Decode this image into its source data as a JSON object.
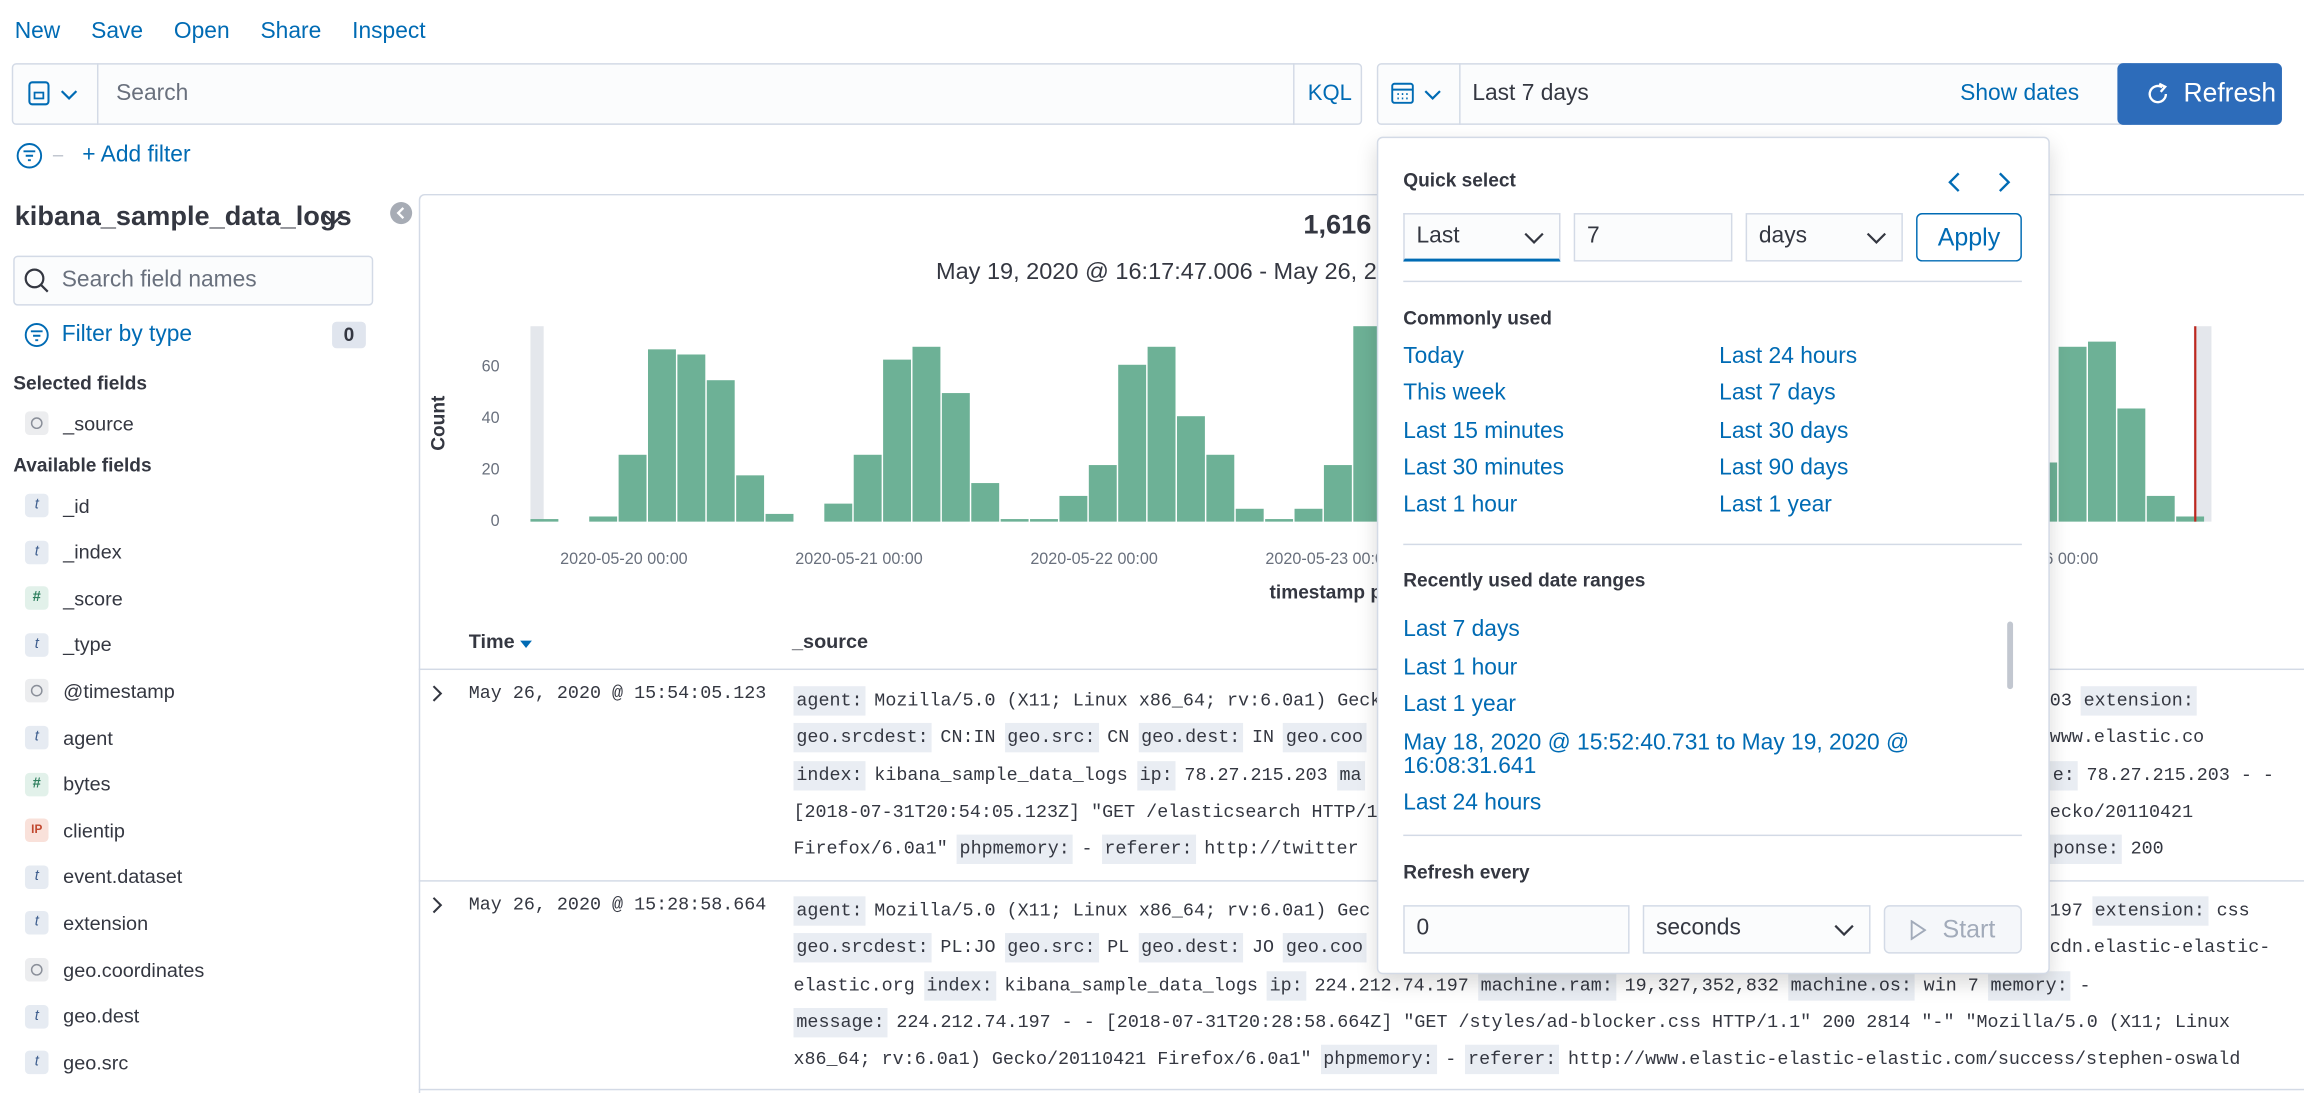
{
  "toolbar": {
    "links": [
      "New",
      "Save",
      "Open",
      "Share",
      "Inspect"
    ]
  },
  "query_bar": {
    "search_placeholder": "Search",
    "query_language": "KQL",
    "date_range": "Last 7 days",
    "show_dates": "Show dates",
    "refresh_button": "Refresh"
  },
  "filter_bar": {
    "add_filter": "+ Add filter"
  },
  "sidebar": {
    "index_pattern": "kibana_sample_data_logs",
    "search_placeholder": "Search field names",
    "filter_by_type": "Filter by type",
    "filter_count": 0,
    "selected_heading": "Selected fields",
    "selected_fields": [
      {
        "icon": null,
        "name": "_source"
      }
    ],
    "available_heading": "Available fields",
    "available_fields": [
      {
        "icon": "t",
        "name": "_id"
      },
      {
        "icon": "t",
        "name": "_index"
      },
      {
        "icon": "#",
        "name": "_score"
      },
      {
        "icon": "t",
        "name": "_type"
      },
      {
        "icon": null,
        "name": "@timestamp"
      },
      {
        "icon": "t",
        "name": "agent"
      },
      {
        "icon": "#",
        "name": "bytes"
      },
      {
        "icon": "IP",
        "name": "clientip"
      },
      {
        "icon": "t",
        "name": "event.dataset"
      },
      {
        "icon": "t",
        "name": "extension"
      },
      {
        "icon": null,
        "name": "geo.coordinates"
      },
      {
        "icon": "t",
        "name": "geo.dest"
      },
      {
        "icon": "t",
        "name": "geo.src"
      }
    ]
  },
  "results": {
    "hits": "1,616",
    "time_range": "May 19, 2020 @ 16:17:47.006 - May 26, 20",
    "histogram": {
      "type": "bar",
      "y_label": "Count",
      "x_label": "timestamp p",
      "color": "#6db196",
      "ylim": [
        0,
        76
      ],
      "yticks": [
        0,
        20,
        40,
        60
      ],
      "xticks": [
        "2020-05-20 00:00",
        "2020-05-21 00:00",
        "2020-05-22 00:00",
        "2020-05-23 00:00",
        null,
        null,
        "6 00:00"
      ],
      "counts": [
        1,
        0,
        2,
        26,
        67,
        65,
        55,
        18,
        3,
        0,
        7,
        26,
        63,
        68,
        50,
        15,
        1,
        1,
        10,
        22,
        61,
        68,
        41,
        26,
        5,
        1,
        5,
        22,
        76,
        null,
        null,
        null,
        null,
        null,
        null,
        null,
        null,
        null,
        null,
        null,
        null,
        null,
        null,
        null,
        null,
        null,
        null,
        null,
        null,
        null,
        null,
        23,
        68,
        70,
        44,
        10,
        2
      ]
    },
    "table": {
      "columns": [
        "Time",
        "_source"
      ],
      "rows": [
        {
          "time": "May 26, 2020 @ 15:54:05.123",
          "lines": [
            {
              "left": [
                {
                  "k": "agent:"
                },
                {
                  "t": "Mozilla/5.0 (X11; Linux x86_64; rv:6.0a1) Geck"
                }
              ],
              "right": [
                {
                  "t": "03"
                },
                {
                  "k": "extension:"
                }
              ]
            },
            {
              "left": [
                {
                  "k": "geo.srcdest:"
                },
                {
                  "t": "CN:IN"
                },
                {
                  "k": "geo.src:"
                },
                {
                  "t": "CN"
                },
                {
                  "k": "geo.dest:"
                },
                {
                  "t": "IN"
                },
                {
                  "k": "geo.coo"
                }
              ],
              "right": [
                {
                  "t": "www.elastic.co"
                }
              ]
            },
            {
              "left": [
                {
                  "k": "index:"
                },
                {
                  "t": "kibana_sample_data_logs"
                },
                {
                  "k": "ip:"
                },
                {
                  "t": "78.27.215.203"
                },
                {
                  "k": "ma"
                }
              ],
              "right": [
                {
                  "k": "e:"
                },
                {
                  "t": "78.27.215.203 - -"
                }
              ]
            },
            {
              "left": [
                {
                  "t": "[2018-07-31T20:54:05.123Z] \"GET /elasticsearch HTTP/1"
                }
              ],
              "right": [
                {
                  "t": "ecko/20110421"
                }
              ]
            },
            {
              "left": [
                {
                  "t": "Firefox/6.0a1\""
                },
                {
                  "k": "phpmemory:"
                },
                {
                  "t": "-"
                },
                {
                  "k": "referer:"
                },
                {
                  "t": "http://twitter"
                }
              ],
              "right": [
                {
                  "k": "ponse:"
                },
                {
                  "t": "200"
                }
              ]
            }
          ]
        },
        {
          "time": "May 26, 2020 @ 15:28:58.664",
          "lines": [
            {
              "left": [
                {
                  "k": "agent:"
                },
                {
                  "t": "Mozilla/5.0 (X11; Linux x86_64; rv:6.0a1) Gec"
                }
              ],
              "right": [
                {
                  "t": "197"
                },
                {
                  "k": "extension:"
                },
                {
                  "t": "css"
                }
              ]
            },
            {
              "left": [
                {
                  "k": "geo.srcdest:"
                },
                {
                  "t": "PL:JO"
                },
                {
                  "k": "geo.src:"
                },
                {
                  "t": "PL"
                },
                {
                  "k": "geo.dest:"
                },
                {
                  "t": "JO"
                },
                {
                  "k": "geo.coo"
                }
              ],
              "right": [
                {
                  "t": "cdn.elastic-elastic-"
                }
              ]
            },
            {
              "left": [
                {
                  "t": "elastic.org"
                },
                {
                  "k": "index:"
                },
                {
                  "t": "kibana_sample_data_logs"
                },
                {
                  "k": "ip:"
                },
                {
                  "t": "224.212.74.197"
                },
                {
                  "k": "machine.ram:"
                },
                {
                  "t": "19,327,352,832"
                },
                {
                  "k": "machine.os:"
                },
                {
                  "t": "win 7"
                },
                {
                  "k": "memory:"
                },
                {
                  "t": "-"
                }
              ]
            },
            {
              "left": [
                {
                  "k": "message:"
                },
                {
                  "t": "224.212.74.197 - - [2018-07-31T20:28:58.664Z] \"GET /styles/ad-blocker.css HTTP/1.1\" 200 2814 \"-\" \"Mozilla/5.0 (X11; Linux"
                }
              ]
            },
            {
              "left": [
                {
                  "t": "x86_64; rv:6.0a1) Gecko/20110421 Firefox/6.0a1\""
                },
                {
                  "k": "phpmemory:"
                },
                {
                  "t": "-"
                },
                {
                  "k": "referer:"
                },
                {
                  "t": "http://www.elastic-elastic-elastic.com/success/stephen-oswald"
                }
              ]
            }
          ]
        }
      ]
    }
  },
  "date_picker": {
    "quick_select": {
      "title": "Quick select",
      "direction": "Last",
      "amount": 7,
      "unit": "days",
      "apply": "Apply"
    },
    "commonly_used": {
      "title": "Commonly used",
      "items": [
        "Today",
        "This week",
        "Last 15 minutes",
        "Last 30 minutes",
        "Last 1 hour",
        "Last 24 hours",
        "Last 7 days",
        "Last 30 days",
        "Last 90 days",
        "Last 1 year"
      ]
    },
    "recently_used": {
      "title": "Recently used date ranges",
      "items": [
        "Last 7 days",
        "Last 1 hour",
        "Last 1 year",
        "May 18, 2020 @ 15:52:40.731 to May 19, 2020 @ 16:08:31.641",
        "Last 24 hours"
      ]
    },
    "refresh": {
      "title": "Refresh every",
      "interval": 0,
      "unit": "seconds",
      "start": "Start"
    }
  }
}
